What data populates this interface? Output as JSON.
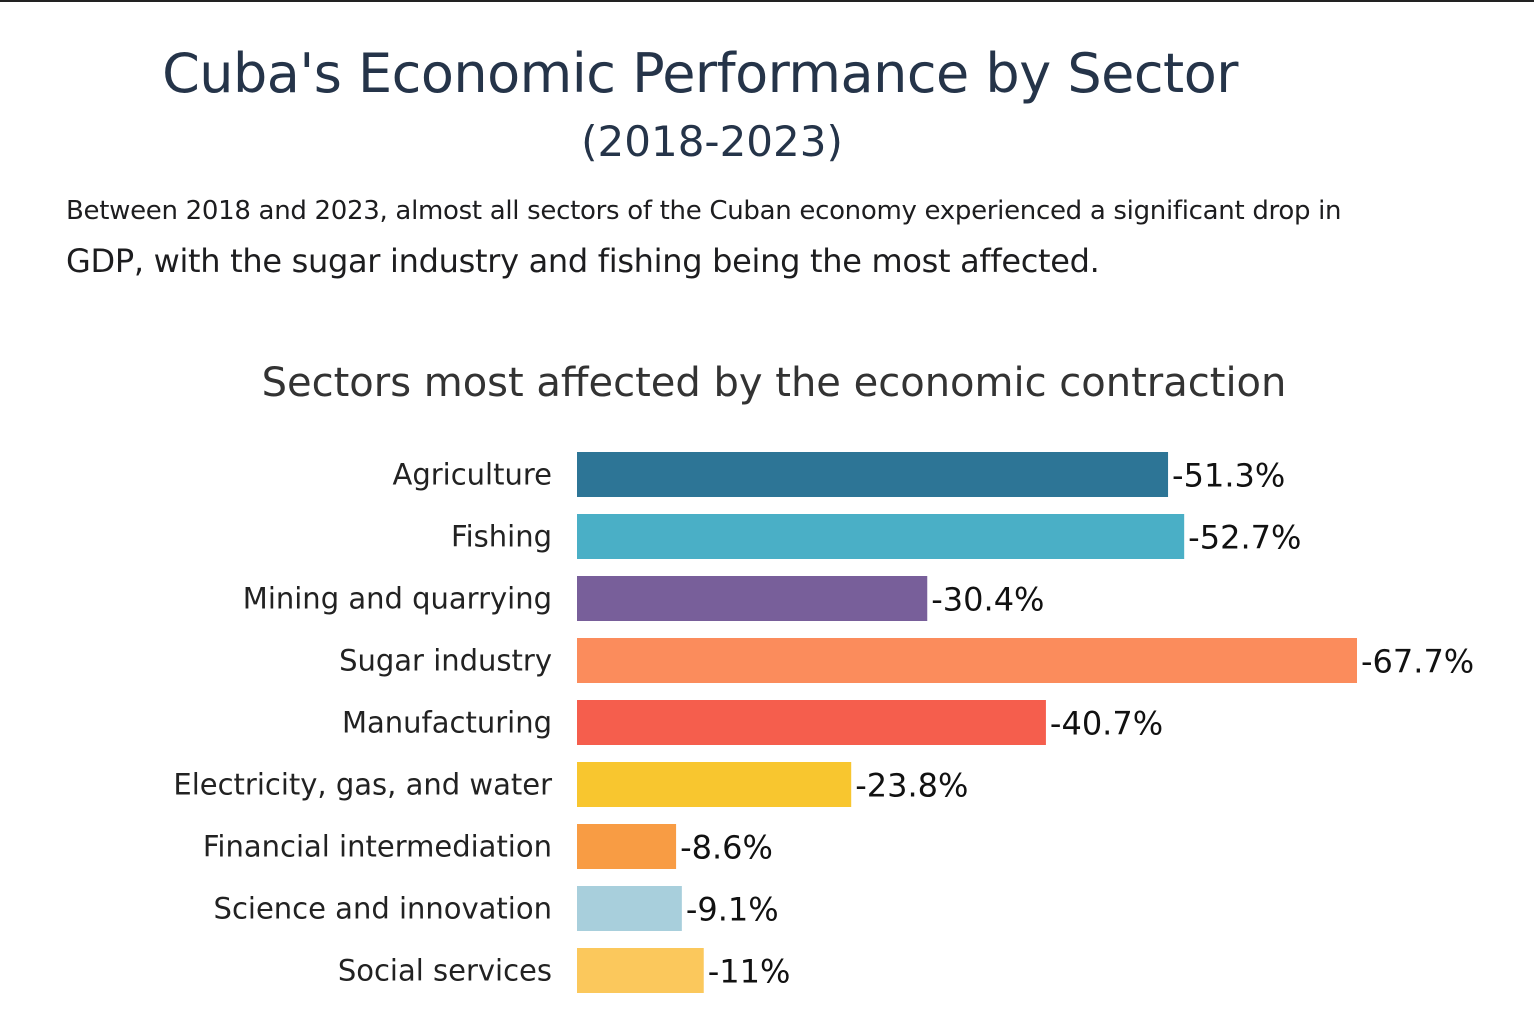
{
  "header": {
    "title": "Cuba's Economic Performance by Sector",
    "subtitle": "(2018-2023)",
    "description_line1": "Between 2018 and 2023, almost all sectors of the Cuban economy experienced a significant drop in",
    "description_line2": "GDP, with the sugar industry and fishing being the most affected."
  },
  "chart_data": {
    "type": "bar",
    "orientation": "horizontal",
    "title": "Sectors most affected by the economic contraction",
    "xlabel": "",
    "ylabel": "",
    "grid": false,
    "categories": [
      "Agriculture",
      "Fishing",
      "Mining and quarrying",
      "Sugar industry",
      "Manufacturing",
      "Electricity, gas, and water",
      "Financial intermediation",
      "Science and innovation",
      "Social services"
    ],
    "values": [
      -51.3,
      -52.7,
      -30.4,
      -67.7,
      -40.7,
      -23.8,
      -8.6,
      -9.1,
      -11
    ],
    "data_labels": [
      "-51.3%",
      "-52.7%",
      "-30.4%",
      "-67.7%",
      "-40.7%",
      "-23.8%",
      "-8.6%",
      "-9.1%",
      "-11%"
    ],
    "colors": [
      "#2d7596",
      "#4aafc6",
      "#785f9a",
      "#fb8c5c",
      "#f55e4d",
      "#f8c62f",
      "#f89c44",
      "#a8cfdc",
      "#fbc85c"
    ]
  }
}
